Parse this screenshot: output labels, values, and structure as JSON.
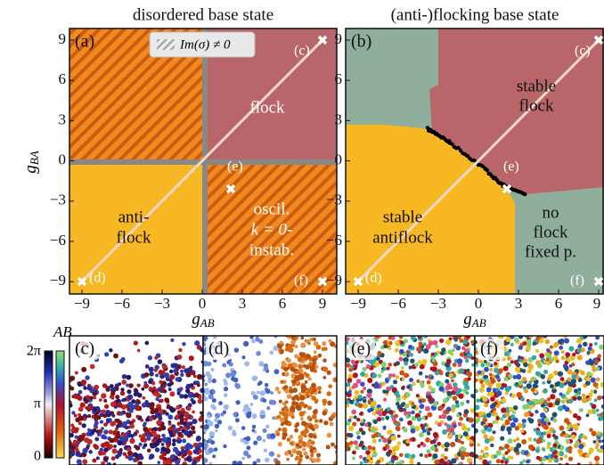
{
  "figure": {
    "axis_ticks": [
      "−9",
      "−6",
      "−3",
      "0",
      "3",
      "6",
      "9"
    ],
    "axis_ticks_y": [
      "9",
      "6",
      "3",
      "0",
      "−3",
      "−6",
      "−9"
    ],
    "x_label": {
      "symbol": "g",
      "sub": "AB"
    },
    "y_label": {
      "symbol": "g",
      "sub": "BA"
    },
    "panels": [
      {
        "tag": "(a)",
        "title": "disordered base state",
        "legend": "Im(σ) ≠ 0",
        "regions": {
          "flock": [
            "flock"
          ],
          "antiflock": [
            "anti-",
            "flock"
          ],
          "oscillation": [
            "oscil.",
            "k = 0-",
            "instab."
          ]
        },
        "points": [
          "(c)",
          "(d)",
          "(e)",
          "(f)"
        ]
      },
      {
        "tag": "(b)",
        "title": "(anti-)flocking base state",
        "regions": {
          "flock": [
            "stable",
            "flock"
          ],
          "antiflock": [
            "stable",
            "antiflock"
          ],
          "fixed": [
            "no",
            "flock",
            "fixed p."
          ]
        },
        "points": [
          "(c)",
          "(d)",
          "(e)",
          "(f)"
        ]
      }
    ],
    "colorbar": {
      "label": "AB",
      "ticks": [
        "2π",
        "π",
        "0"
      ]
    },
    "snapshots": [
      "(c)",
      "(d)",
      "(e)",
      "(f)"
    ]
  }
}
